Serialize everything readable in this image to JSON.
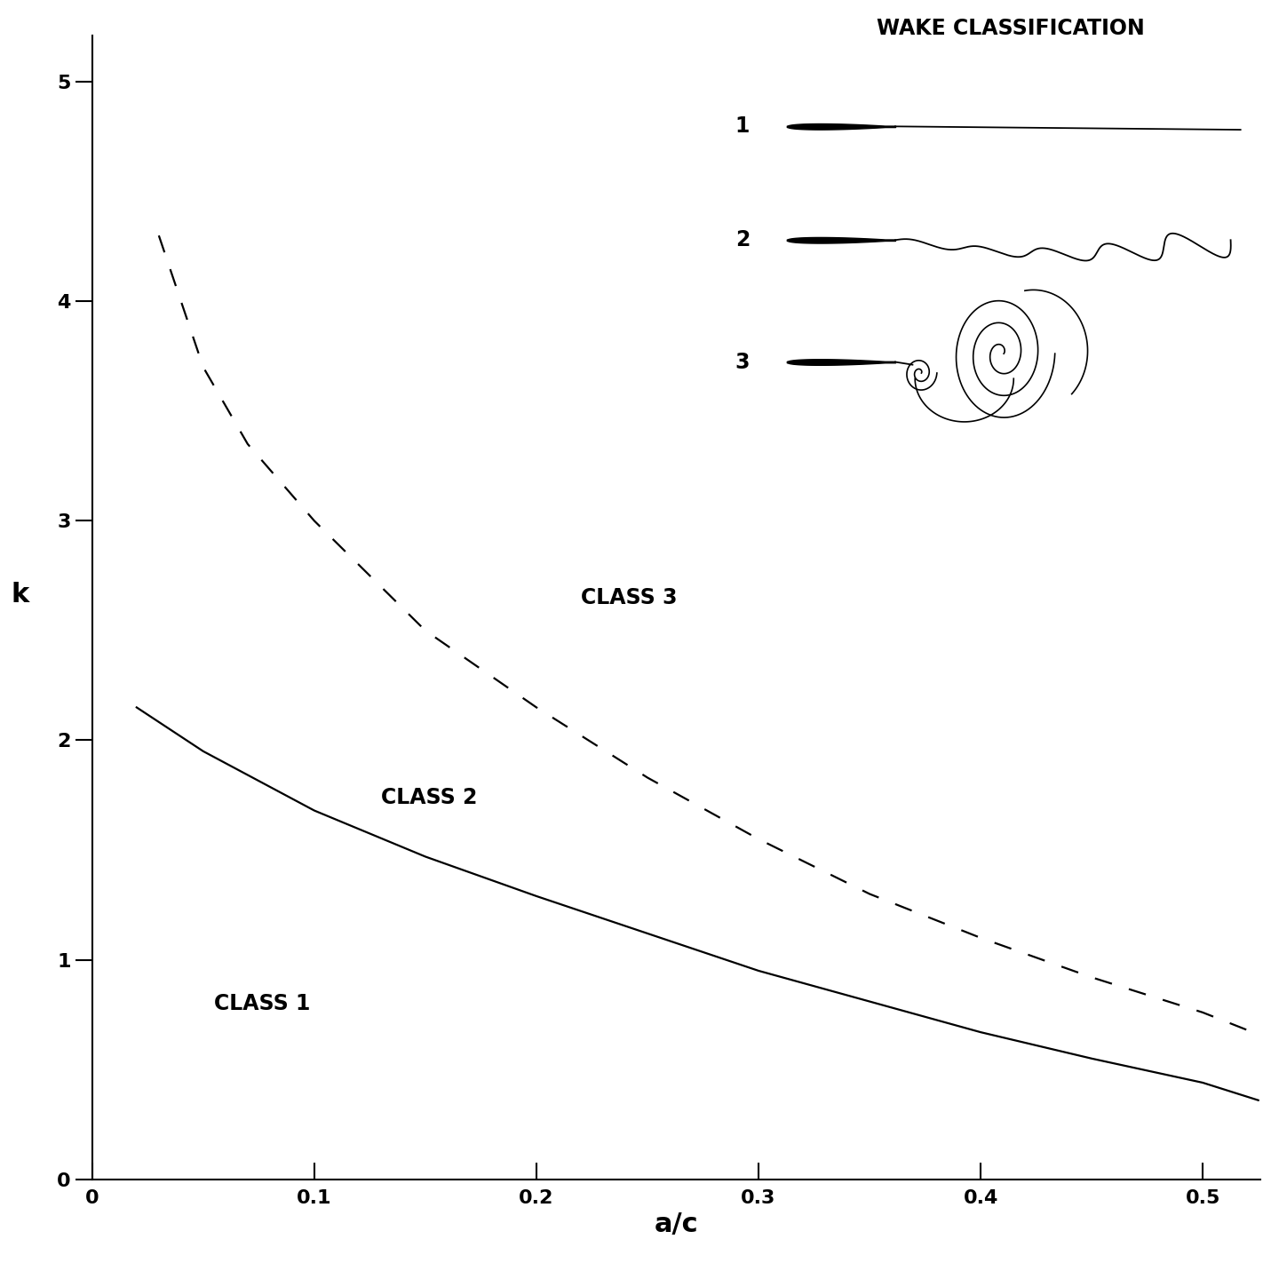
{
  "chart_data": {
    "type": "line",
    "xlabel": "a/c",
    "ylabel": "k",
    "xlim": [
      0,
      0.526
    ],
    "ylim": [
      0,
      5.21
    ],
    "xticks": [
      0,
      0.1,
      0.2,
      0.3,
      0.4,
      0.5
    ],
    "yticks": [
      0,
      1,
      2,
      3,
      4,
      5
    ],
    "grid": false,
    "series": [
      {
        "x": [
          0.02,
          0.05,
          0.1,
          0.15,
          0.2,
          0.25,
          0.3,
          0.35,
          0.4,
          0.45,
          0.5,
          0.525
        ],
        "values": [
          2.15,
          1.95,
          1.68,
          1.47,
          1.29,
          1.12,
          0.95,
          0.81,
          0.67,
          0.55,
          0.44,
          0.36
        ],
        "color": "#000000",
        "line_style": "solid"
      },
      {
        "x": [
          0.03,
          0.05,
          0.07,
          0.1,
          0.15,
          0.2,
          0.25,
          0.3,
          0.35,
          0.4,
          0.45,
          0.5,
          0.52
        ],
        "values": [
          4.3,
          3.7,
          3.35,
          3.0,
          2.5,
          2.15,
          1.83,
          1.55,
          1.3,
          1.1,
          0.92,
          0.76,
          0.68
        ],
        "color": "#000000",
        "line_style": "dashed"
      }
    ],
    "annotations": [
      "CLASS 1",
      "CLASS 2",
      "CLASS 3"
    ],
    "wake_classification": {
      "title": "WAKE CLASSIFICATION",
      "items": [
        "1",
        "2",
        "3"
      ]
    }
  }
}
